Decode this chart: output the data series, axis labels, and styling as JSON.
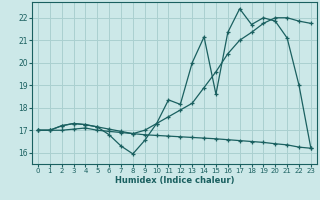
{
  "xlabel": "Humidex (Indice chaleur)",
  "bg_color": "#cce8e8",
  "grid_color": "#aad0d0",
  "line_color": "#1a6060",
  "xlim": [
    -0.5,
    23.5
  ],
  "ylim": [
    15.5,
    22.7
  ],
  "yticks": [
    16,
    17,
    18,
    19,
    20,
    21,
    22
  ],
  "xticks": [
    0,
    1,
    2,
    3,
    4,
    5,
    6,
    7,
    8,
    9,
    10,
    11,
    12,
    13,
    14,
    15,
    16,
    17,
    18,
    19,
    20,
    21,
    22,
    23
  ],
  "line1_x": [
    0,
    1,
    2,
    3,
    4,
    5,
    6,
    7,
    8,
    9,
    10,
    11,
    12,
    13,
    14,
    15,
    16,
    17,
    18,
    19,
    20,
    21,
    22,
    23
  ],
  "line1_y": [
    17.0,
    17.0,
    17.2,
    17.3,
    17.25,
    17.15,
    16.8,
    16.3,
    15.95,
    16.55,
    17.3,
    18.35,
    18.15,
    20.0,
    21.15,
    18.6,
    21.35,
    22.4,
    21.7,
    22.0,
    21.85,
    21.1,
    19.0,
    16.2
  ],
  "line2_x": [
    0,
    1,
    2,
    3,
    4,
    5,
    6,
    7,
    8,
    9,
    10,
    11,
    12,
    13,
    14,
    15,
    16,
    17,
    18,
    19,
    20,
    21,
    22,
    23
  ],
  "line2_y": [
    17.0,
    17.0,
    17.2,
    17.3,
    17.25,
    17.15,
    17.05,
    16.95,
    16.85,
    17.0,
    17.3,
    17.6,
    17.9,
    18.2,
    18.9,
    19.6,
    20.4,
    21.0,
    21.35,
    21.75,
    22.0,
    22.0,
    21.85,
    21.75
  ],
  "line3_x": [
    0,
    1,
    2,
    3,
    4,
    5,
    6,
    7,
    8,
    9,
    10,
    11,
    12,
    13,
    14,
    15,
    16,
    17,
    18,
    19,
    20,
    21,
    22,
    23
  ],
  "line3_y": [
    17.0,
    17.0,
    17.0,
    17.05,
    17.1,
    17.0,
    16.95,
    16.9,
    16.85,
    16.8,
    16.77,
    16.74,
    16.71,
    16.68,
    16.65,
    16.62,
    16.58,
    16.54,
    16.5,
    16.46,
    16.4,
    16.35,
    16.25,
    16.2
  ]
}
